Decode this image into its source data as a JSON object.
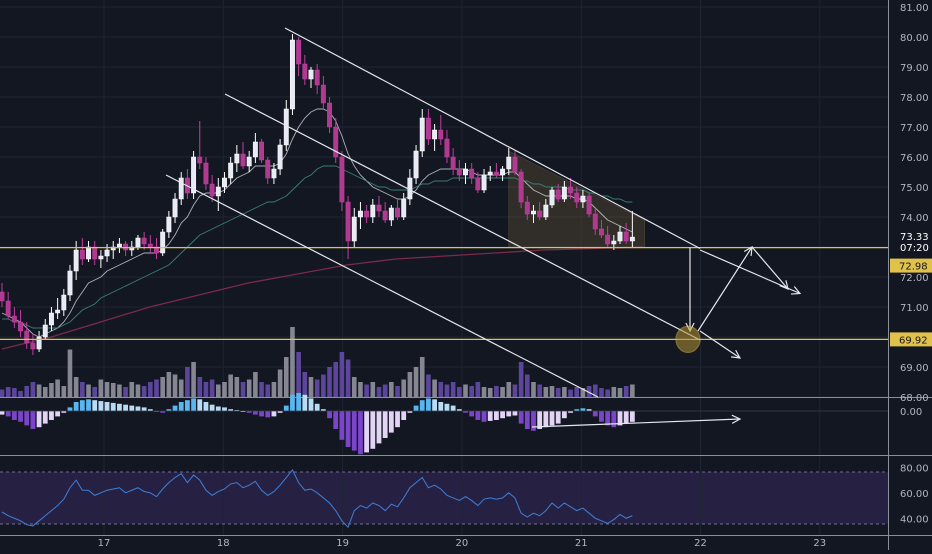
{
  "chart_data": {
    "type": "candlestick",
    "instrument_panel": {
      "price_axis_ticks": [
        "81.00",
        "80.00",
        "79.00",
        "78.00",
        "77.00",
        "76.00",
        "75.00",
        "74.00",
        "73.00",
        "72.00",
        "71.00",
        "70.00",
        "69.00",
        "68.00"
      ],
      "ylim": [
        68,
        81
      ],
      "last_price": "73.33",
      "countdown": "07:20",
      "levels": [
        {
          "label": "72.98",
          "price": 72.98,
          "color": "#e0c14a"
        },
        {
          "label": "69.92",
          "price": 69.92,
          "color": "#e0c14a"
        }
      ],
      "ohlc": [
        [
          71.5,
          71.8,
          71.0,
          71.2
        ],
        [
          71.2,
          71.5,
          70.6,
          70.7
        ],
        [
          70.7,
          71.0,
          70.3,
          70.5
        ],
        [
          70.5,
          70.9,
          70.0,
          70.2
        ],
        [
          70.2,
          70.5,
          69.6,
          69.8
        ],
        [
          69.8,
          70.1,
          69.4,
          69.6
        ],
        [
          69.6,
          70.2,
          69.5,
          70.0
        ],
        [
          70.0,
          70.6,
          69.9,
          70.4
        ],
        [
          70.4,
          71.0,
          70.2,
          70.8
        ],
        [
          70.8,
          71.3,
          70.6,
          70.9
        ],
        [
          70.9,
          71.6,
          70.7,
          71.4
        ],
        [
          71.4,
          72.4,
          71.2,
          72.2
        ],
        [
          72.2,
          73.2,
          71.9,
          72.9
        ],
        [
          72.9,
          73.3,
          72.4,
          72.6
        ],
        [
          72.6,
          73.2,
          72.5,
          73.0
        ],
        [
          73.0,
          73.2,
          72.4,
          72.6
        ],
        [
          72.6,
          72.9,
          72.3,
          72.7
        ],
        [
          72.7,
          73.1,
          72.5,
          72.9
        ],
        [
          72.9,
          73.2,
          72.6,
          73.0
        ],
        [
          73.0,
          73.3,
          72.8,
          73.1
        ],
        [
          73.1,
          73.2,
          72.7,
          72.9
        ],
        [
          72.9,
          73.2,
          72.7,
          73.0
        ],
        [
          73.0,
          73.4,
          72.9,
          73.3
        ],
        [
          73.3,
          73.5,
          72.9,
          73.1
        ],
        [
          73.1,
          73.4,
          72.8,
          73.0
        ],
        [
          73.0,
          73.3,
          72.6,
          72.8
        ],
        [
          72.8,
          73.6,
          72.7,
          73.5
        ],
        [
          73.5,
          74.2,
          73.3,
          74.0
        ],
        [
          74.0,
          74.8,
          73.8,
          74.6
        ],
        [
          74.6,
          75.5,
          74.4,
          75.3
        ],
        [
          75.3,
          75.6,
          74.6,
          74.8
        ],
        [
          74.8,
          76.2,
          74.6,
          76.0
        ],
        [
          76.0,
          77.2,
          75.6,
          75.8
        ],
        [
          75.8,
          76.0,
          74.9,
          75.1
        ],
        [
          75.1,
          75.4,
          74.5,
          74.7
        ],
        [
          74.7,
          75.3,
          74.2,
          75.0
        ],
        [
          75.0,
          75.5,
          74.8,
          75.3
        ],
        [
          75.3,
          76.0,
          75.1,
          75.8
        ],
        [
          75.8,
          76.4,
          75.5,
          76.1
        ],
        [
          76.1,
          76.5,
          75.6,
          75.7
        ],
        [
          75.7,
          76.2,
          75.5,
          76.0
        ],
        [
          76.0,
          76.8,
          75.8,
          76.5
        ],
        [
          76.5,
          76.6,
          75.8,
          75.9
        ],
        [
          75.9,
          76.0,
          75.1,
          75.3
        ],
        [
          75.3,
          75.8,
          75.1,
          75.6
        ],
        [
          75.6,
          76.6,
          75.4,
          76.4
        ],
        [
          76.4,
          77.9,
          76.2,
          77.6
        ],
        [
          77.6,
          80.1,
          77.4,
          79.9
        ],
        [
          79.9,
          80.0,
          78.7,
          79.1
        ],
        [
          79.1,
          79.4,
          78.4,
          78.6
        ],
        [
          78.6,
          79.0,
          78.3,
          78.9
        ],
        [
          78.9,
          79.1,
          78.1,
          78.4
        ],
        [
          78.4,
          78.7,
          77.6,
          77.8
        ],
        [
          77.8,
          78.0,
          76.8,
          77.0
        ],
        [
          77.0,
          77.3,
          75.8,
          76.0
        ],
        [
          76.0,
          76.2,
          74.2,
          74.5
        ],
        [
          74.5,
          74.7,
          72.6,
          73.2
        ],
        [
          73.2,
          74.3,
          73.0,
          74.0
        ],
        [
          74.0,
          74.5,
          73.6,
          74.2
        ],
        [
          74.2,
          74.4,
          73.8,
          74.0
        ],
        [
          74.0,
          74.6,
          73.8,
          74.4
        ],
        [
          74.4,
          74.7,
          74.0,
          74.2
        ],
        [
          74.2,
          74.5,
          73.8,
          73.9
        ],
        [
          73.9,
          74.4,
          73.7,
          74.3
        ],
        [
          74.3,
          74.6,
          73.9,
          74.0
        ],
        [
          74.0,
          74.8,
          73.9,
          74.6
        ],
        [
          74.6,
          75.6,
          74.4,
          75.3
        ],
        [
          75.3,
          76.4,
          75.1,
          76.2
        ],
        [
          76.2,
          77.6,
          76.0,
          77.3
        ],
        [
          77.3,
          77.6,
          76.4,
          76.6
        ],
        [
          76.6,
          77.1,
          76.2,
          76.9
        ],
        [
          76.9,
          77.4,
          76.4,
          76.6
        ],
        [
          76.6,
          76.9,
          75.8,
          76.0
        ],
        [
          76.0,
          76.3,
          75.4,
          75.6
        ],
        [
          75.6,
          75.9,
          75.2,
          75.4
        ],
        [
          75.4,
          75.8,
          75.1,
          75.6
        ],
        [
          75.6,
          75.8,
          75.1,
          75.3
        ],
        [
          75.3,
          75.5,
          74.8,
          74.9
        ],
        [
          74.9,
          75.6,
          74.8,
          75.4
        ],
        [
          75.4,
          75.7,
          75.2,
          75.5
        ],
        [
          75.5,
          75.8,
          75.3,
          75.4
        ],
        [
          75.4,
          75.7,
          75.2,
          75.6
        ],
        [
          75.6,
          76.3,
          75.4,
          76.0
        ],
        [
          76.0,
          76.2,
          75.4,
          75.5
        ],
        [
          75.5,
          75.6,
          74.3,
          74.5
        ],
        [
          74.5,
          74.7,
          73.9,
          74.1
        ],
        [
          74.1,
          74.4,
          73.8,
          74.2
        ],
        [
          74.2,
          74.5,
          73.9,
          74.0
        ],
        [
          74.0,
          74.6,
          73.9,
          74.4
        ],
        [
          74.4,
          75.0,
          74.3,
          74.9
        ],
        [
          74.9,
          75.1,
          74.5,
          74.6
        ],
        [
          74.6,
          75.2,
          74.5,
          75.0
        ],
        [
          75.0,
          75.3,
          74.6,
          74.8
        ],
        [
          74.8,
          75.0,
          74.3,
          74.5
        ],
        [
          74.5,
          74.9,
          74.3,
          74.7
        ],
        [
          74.7,
          74.8,
          74.0,
          74.1
        ],
        [
          74.1,
          74.3,
          73.4,
          73.6
        ],
        [
          73.6,
          73.9,
          73.3,
          73.4
        ],
        [
          73.4,
          73.7,
          73.0,
          73.1
        ],
        [
          73.1,
          73.4,
          72.9,
          73.2
        ],
        [
          73.2,
          73.7,
          73.1,
          73.5
        ],
        [
          73.5,
          73.8,
          73.1,
          73.2
        ],
        [
          73.2,
          74.2,
          73.0,
          73.33
        ]
      ],
      "volume": [
        0.15,
        0.2,
        0.18,
        0.12,
        0.22,
        0.3,
        0.25,
        0.2,
        0.28,
        0.35,
        0.22,
        0.95,
        0.4,
        0.3,
        0.25,
        0.2,
        0.35,
        0.3,
        0.28,
        0.25,
        0.2,
        0.3,
        0.25,
        0.22,
        0.3,
        0.35,
        0.4,
        0.5,
        0.45,
        0.35,
        0.6,
        0.7,
        0.4,
        0.3,
        0.35,
        0.25,
        0.3,
        0.45,
        0.4,
        0.3,
        0.35,
        0.5,
        0.3,
        0.25,
        0.3,
        0.55,
        0.8,
        1.4,
        0.9,
        0.5,
        0.4,
        0.35,
        0.45,
        0.6,
        0.7,
        0.9,
        0.75,
        0.4,
        0.3,
        0.25,
        0.3,
        0.2,
        0.25,
        0.3,
        0.22,
        0.35,
        0.5,
        0.6,
        0.8,
        0.45,
        0.35,
        0.3,
        0.25,
        0.3,
        0.2,
        0.25,
        0.22,
        0.3,
        0.2,
        0.18,
        0.22,
        0.2,
        0.3,
        0.25,
        0.7,
        0.45,
        0.3,
        0.25,
        0.2,
        0.22,
        0.18,
        0.2,
        0.15,
        0.2,
        0.18,
        0.22,
        0.25,
        0.18,
        0.15,
        0.2,
        0.18,
        0.22,
        0.25
      ],
      "ema_fast": [
        70.8,
        70.7,
        70.6,
        70.5,
        70.3,
        70.1,
        70.0,
        70.1,
        70.2,
        70.3,
        70.5,
        70.8,
        71.2,
        71.5,
        71.8,
        71.9,
        72.0,
        72.2,
        72.3,
        72.4,
        72.5,
        72.6,
        72.7,
        72.8,
        72.8,
        72.8,
        72.9,
        73.1,
        73.4,
        73.8,
        74.0,
        74.4,
        74.7,
        74.8,
        74.8,
        74.8,
        74.9,
        75.1,
        75.3,
        75.4,
        75.5,
        75.7,
        75.7,
        75.7,
        75.7,
        75.8,
        76.1,
        76.6,
        77.0,
        77.3,
        77.5,
        77.6,
        77.6,
        77.5,
        77.2,
        76.7,
        76.1,
        75.7,
        75.4,
        75.2,
        75.0,
        74.9,
        74.8,
        74.7,
        74.6,
        74.6,
        74.7,
        74.9,
        75.2,
        75.4,
        75.5,
        75.6,
        75.6,
        75.6,
        75.6,
        75.6,
        75.5,
        75.4,
        75.4,
        75.4,
        75.4,
        75.4,
        75.5,
        75.5,
        75.3,
        75.1,
        74.9,
        74.8,
        74.7,
        74.7,
        74.7,
        74.7,
        74.7,
        74.6,
        74.6,
        74.5,
        74.3,
        74.1,
        73.9,
        73.8,
        73.7,
        73.6,
        73.5
      ],
      "ema_slow": [
        70.6,
        70.6,
        70.5,
        70.5,
        70.4,
        70.3,
        70.3,
        70.3,
        70.3,
        70.3,
        70.4,
        70.5,
        70.7,
        70.9,
        71.0,
        71.1,
        71.3,
        71.4,
        71.5,
        71.6,
        71.7,
        71.8,
        71.9,
        72.0,
        72.1,
        72.2,
        72.3,
        72.4,
        72.6,
        72.8,
        73.0,
        73.2,
        73.4,
        73.5,
        73.6,
        73.7,
        73.8,
        73.9,
        74.0,
        74.1,
        74.2,
        74.3,
        74.4,
        74.5,
        74.5,
        74.6,
        74.7,
        74.9,
        75.1,
        75.3,
        75.4,
        75.6,
        75.7,
        75.7,
        75.7,
        75.6,
        75.5,
        75.4,
        75.3,
        75.2,
        75.1,
        75.0,
        75.0,
        74.9,
        74.9,
        74.9,
        74.9,
        75.0,
        75.1,
        75.1,
        75.2,
        75.2,
        75.2,
        75.3,
        75.3,
        75.3,
        75.3,
        75.3,
        75.3,
        75.3,
        75.3,
        75.3,
        75.3,
        75.3,
        75.2,
        75.2,
        75.1,
        75.1,
        75.0,
        75.0,
        75.0,
        75.0,
        74.9,
        74.9,
        74.9,
        74.8,
        74.8,
        74.7,
        74.7,
        74.6,
        74.6,
        74.5,
        74.5
      ],
      "ma_long": [
        69.6,
        70.0,
        70.5,
        71.0,
        71.4,
        71.8,
        72.1,
        72.4,
        72.6,
        72.7,
        72.8,
        72.9,
        72.95,
        73.0
      ]
    },
    "macd_panel": {
      "ticks": [
        "0.00"
      ],
      "histogram": [
        -0.2,
        -0.3,
        -0.5,
        -0.6,
        -0.8,
        -1.0,
        -0.9,
        -0.7,
        -0.5,
        -0.3,
        -0.1,
        0.2,
        0.5,
        0.6,
        0.65,
        0.6,
        0.55,
        0.5,
        0.45,
        0.4,
        0.35,
        0.3,
        0.25,
        0.2,
        0.1,
        -0.05,
        -0.1,
        0.1,
        0.3,
        0.5,
        0.6,
        0.7,
        0.65,
        0.5,
        0.35,
        0.25,
        0.2,
        0.1,
        0.05,
        0.0,
        -0.1,
        -0.2,
        -0.3,
        -0.35,
        -0.3,
        -0.1,
        0.3,
        0.9,
        1.0,
        0.9,
        0.7,
        0.4,
        0.1,
        -0.4,
        -1.0,
        -1.6,
        -2.0,
        -2.2,
        -2.4,
        -2.3,
        -2.1,
        -1.8,
        -1.5,
        -1.2,
        -0.9,
        -0.5,
        -0.1,
        0.3,
        0.6,
        0.7,
        0.65,
        0.5,
        0.4,
        0.3,
        0.1,
        -0.1,
        -0.3,
        -0.5,
        -0.6,
        -0.55,
        -0.5,
        -0.4,
        -0.3,
        -0.25,
        -0.7,
        -1.0,
        -1.1,
        -1.0,
        -0.9,
        -0.8,
        -0.7,
        -0.4,
        -0.1,
        0.1,
        0.15,
        0.1,
        -0.3,
        -0.6,
        -0.8,
        -0.9,
        -0.8,
        -0.7,
        -0.6
      ]
    },
    "rsi_panel": {
      "ticks": [
        "80.00",
        "60.00",
        "40.00"
      ],
      "ylim": [
        30,
        85
      ],
      "bands": [
        70,
        30
      ],
      "values": [
        45,
        42,
        40,
        38,
        35,
        34,
        38,
        42,
        46,
        50,
        55,
        64,
        70,
        62,
        62,
        58,
        60,
        62,
        63,
        64,
        60,
        62,
        64,
        61,
        60,
        57,
        63,
        68,
        72,
        75,
        68,
        74,
        70,
        62,
        58,
        61,
        63,
        67,
        68,
        64,
        66,
        69,
        62,
        58,
        61,
        66,
        72,
        78,
        68,
        62,
        63,
        60,
        56,
        52,
        46,
        38,
        33,
        46,
        50,
        48,
        52,
        50,
        46,
        51,
        49,
        56,
        64,
        68,
        72,
        64,
        66,
        63,
        58,
        56,
        54,
        57,
        54,
        50,
        55,
        56,
        55,
        56,
        60,
        56,
        44,
        41,
        44,
        42,
        46,
        52,
        48,
        52,
        49,
        46,
        48,
        44,
        40,
        38,
        36,
        39,
        43,
        40,
        42
      ]
    },
    "x_axis": {
      "labels": [
        "17",
        "18",
        "19",
        "20",
        "21",
        "22",
        "23"
      ],
      "ticks": [
        17,
        18,
        19,
        20,
        21,
        22,
        23
      ]
    },
    "annotations": [
      "descending channel upper trendline",
      "descending channel mid trendline",
      "descending channel lower trendline",
      "projected down-then-up path to 69.92",
      "divergence arrow in MACD panel"
    ]
  }
}
